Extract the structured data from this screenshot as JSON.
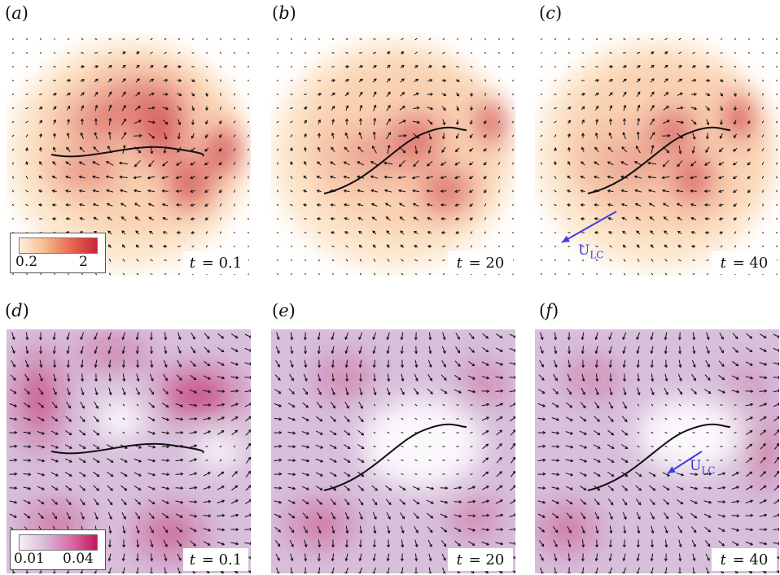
{
  "panels": [
    {
      "id": "a",
      "label": "a",
      "time": "0.1",
      "scheme": "orange",
      "curve": "flat",
      "colorbar": true,
      "ulc": false
    },
    {
      "id": "b",
      "label": "b",
      "time": "20",
      "scheme": "orange",
      "curve": "s",
      "colorbar": false,
      "ulc": false
    },
    {
      "id": "c",
      "label": "c",
      "time": "40",
      "scheme": "orange",
      "curve": "s",
      "colorbar": false,
      "ulc": true
    },
    {
      "id": "d",
      "label": "d",
      "time": "0.1",
      "scheme": "magenta",
      "curve": "flat",
      "colorbar": true,
      "ulc": false
    },
    {
      "id": "e",
      "label": "e",
      "time": "20",
      "scheme": "magenta",
      "curve": "s",
      "colorbar": false,
      "ulc": false
    },
    {
      "id": "f",
      "label": "f",
      "time": "40",
      "scheme": "magenta",
      "curve": "s",
      "colorbar": false,
      "ulc": true
    }
  ],
  "time_var": "t",
  "time_eq": " = ",
  "colorbar_top": {
    "min": "0.2",
    "max": "2"
  },
  "colorbar_bottom": {
    "min": "0.01",
    "max": "0.04"
  },
  "ulc_label": {
    "main": "U",
    "sub": "LC"
  },
  "colors": {
    "orange_light": "#fce6cc",
    "orange_dark": "#c7283a",
    "magenta_light": "#f3eef6",
    "magenta_dark": "#c2185b",
    "arrow": "#111111",
    "ulc": "#3d3ddf"
  }
}
